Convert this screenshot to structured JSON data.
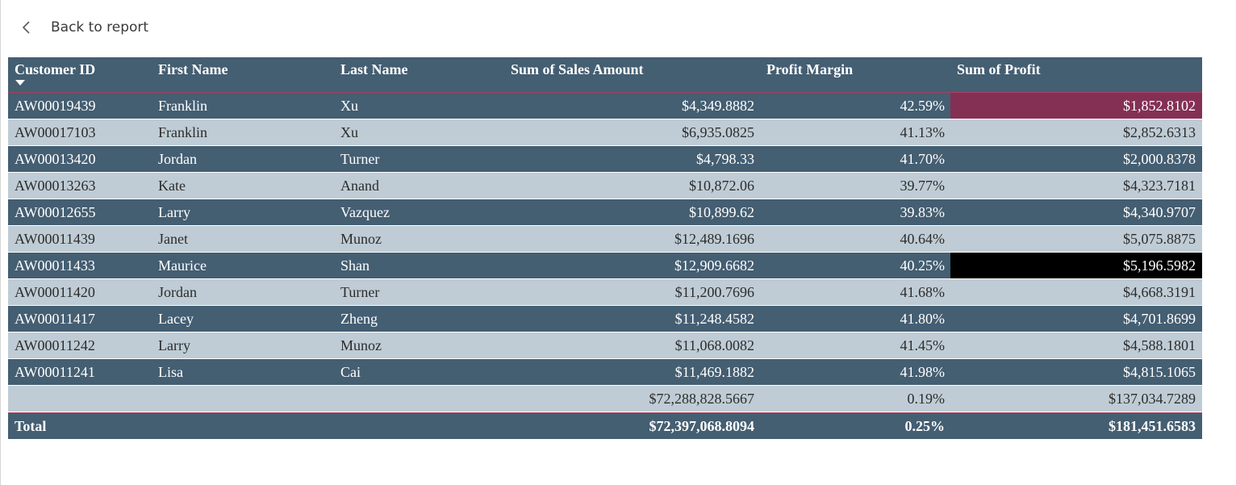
{
  "nav": {
    "back_label": "Back to report"
  },
  "table": {
    "columns": [
      "Customer ID",
      "First Name",
      "Last Name",
      "Sum of Sales Amount",
      "Profit Margin",
      "Sum of Profit"
    ],
    "sort_column": "Customer ID",
    "sort_direction": "descending",
    "rows": [
      [
        "AW00019439",
        "Franklin",
        "Xu",
        "$4,349.8882",
        "42.59%",
        "$1,852.8102"
      ],
      [
        "AW00017103",
        "Franklin",
        "Xu",
        "$6,935.0825",
        "41.13%",
        "$2,852.6313"
      ],
      [
        "AW00013420",
        "Jordan",
        "Turner",
        "$4,798.33",
        "41.70%",
        "$2,000.8378"
      ],
      [
        "AW00013263",
        "Kate",
        "Anand",
        "$10,872.06",
        "39.77%",
        "$4,323.7181"
      ],
      [
        "AW00012655",
        "Larry",
        "Vazquez",
        "$10,899.62",
        "39.83%",
        "$4,340.9707"
      ],
      [
        "AW00011439",
        "Janet",
        "Munoz",
        "$12,489.1696",
        "40.64%",
        "$5,075.8875"
      ],
      [
        "AW00011433",
        "Maurice",
        "Shan",
        "$12,909.6682",
        "40.25%",
        "$5,196.5982"
      ],
      [
        "AW00011420",
        "Jordan",
        "Turner",
        "$11,200.7696",
        "41.68%",
        "$4,668.3191"
      ],
      [
        "AW00011417",
        "Lacey",
        "Zheng",
        "$11,248.4582",
        "41.80%",
        "$4,701.8699"
      ],
      [
        "AW00011242",
        "Larry",
        "Munoz",
        "$11,068.0082",
        "41.45%",
        "$4,588.1801"
      ],
      [
        "AW00011241",
        "Lisa",
        "Cai",
        "$11,469.1882",
        "41.98%",
        "$4,815.1065"
      ],
      [
        "",
        "",
        "",
        "$72,288,828.5667",
        "0.19%",
        "$137,034.7289"
      ]
    ],
    "total": [
      "Total",
      "",
      "",
      "$72,397,068.8094",
      "0.25%",
      "$181,451.6583"
    ]
  },
  "colors": {
    "header_bg": "#445e72",
    "row_dark": "#445e72",
    "row_light": "#bfccd5",
    "accent": "#a6415f",
    "highlight_min": "#843054",
    "highlight_max": "#000000"
  },
  "icons": {
    "back": "chevron-left-icon",
    "sort": "sort-descending-icon"
  }
}
